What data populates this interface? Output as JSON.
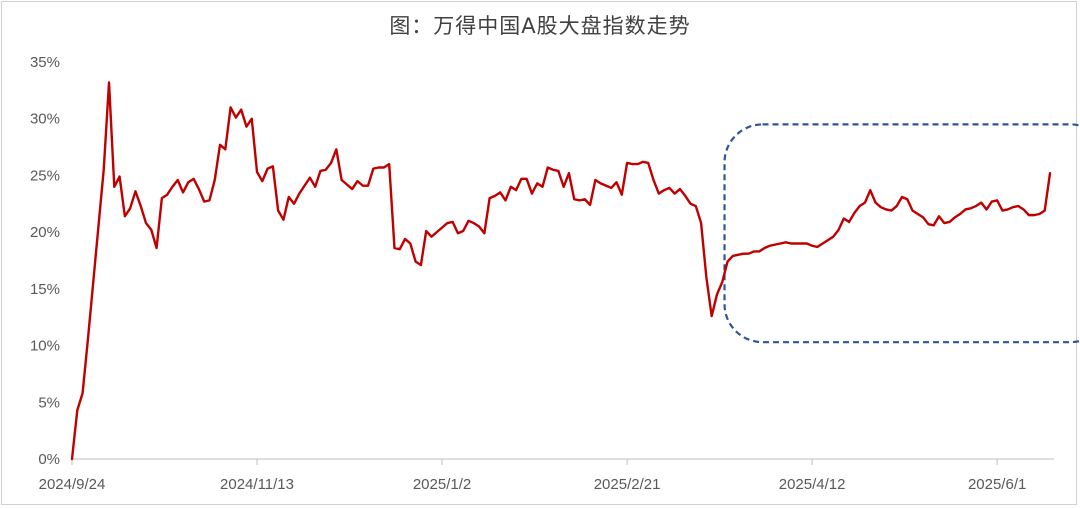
{
  "chart_data": {
    "type": "line",
    "title": "图：万得中国A股大盘指数走势",
    "y_ticks": [
      "0%",
      "5%",
      "10%",
      "15%",
      "20%",
      "25%",
      "30%",
      "35%"
    ],
    "ylim": [
      0,
      35
    ],
    "x_ticks": [
      "2024/9/24",
      "2024/11/13",
      "2025/1/2",
      "2025/2/21",
      "2025/4/12",
      "2025/6/1"
    ],
    "x_tick_index": [
      0,
      35,
      70,
      105,
      140,
      175
    ],
    "grid": false,
    "series": [
      {
        "color": "#c00000",
        "values": [
          0,
          4.3,
          5.8,
          10.5,
          15.5,
          20.5,
          25.5,
          33.2,
          24.0,
          24.9,
          21.4,
          22.1,
          23.6,
          22.3,
          20.8,
          20.2,
          18.6,
          23.0,
          23.3,
          24.0,
          24.6,
          23.5,
          24.4,
          24.7,
          23.8,
          22.7,
          22.8,
          24.6,
          27.7,
          27.3,
          31.0,
          30.1,
          30.8,
          29.3,
          30.0,
          25.3,
          24.5,
          25.6,
          25.8,
          21.9,
          21.1,
          23.1,
          22.5,
          23.4,
          24.1,
          24.8,
          24.0,
          25.4,
          25.5,
          26.1,
          27.3,
          24.6,
          24.2,
          23.8,
          24.5,
          24.1,
          24.1,
          25.6,
          25.7,
          25.7,
          26.0,
          18.6,
          18.5,
          19.4,
          19.0,
          17.4,
          17.1,
          20.1,
          19.6,
          20.0,
          20.4,
          20.8,
          20.9,
          19.9,
          20.1,
          21.0,
          20.8,
          20.5,
          19.9,
          23.0,
          23.2,
          23.5,
          22.8,
          24.0,
          23.7,
          24.7,
          24.7,
          23.4,
          24.3,
          24.0,
          25.7,
          25.5,
          25.4,
          24.0,
          25.2,
          22.9,
          22.8,
          22.9,
          22.4,
          24.6,
          24.3,
          24.1,
          23.9,
          24.4,
          23.3,
          26.1,
          26.0,
          26.0,
          26.2,
          26.1,
          24.6,
          23.4,
          23.7,
          23.9,
          23.4,
          23.8,
          23.2,
          22.5,
          22.3,
          20.8,
          16.0,
          12.6,
          14.5,
          15.6,
          17.4,
          17.9,
          18.0,
          18.1,
          18.1,
          18.3,
          18.3,
          18.6,
          18.8,
          18.9,
          19.0,
          19.1,
          19.0,
          19.0,
          19.0,
          19.0,
          18.8,
          18.7,
          19.0,
          19.3,
          19.6,
          20.2,
          21.2,
          20.9,
          21.7,
          22.3,
          22.6,
          23.7,
          22.6,
          22.2,
          22.0,
          21.9,
          22.3,
          23.1,
          22.9,
          21.9,
          21.6,
          21.3,
          20.7,
          20.6,
          21.4,
          20.8,
          20.9,
          21.3,
          21.6,
          22.0,
          22.1,
          22.3,
          22.6,
          22.0,
          22.7,
          22.8,
          21.9,
          22.0,
          22.2,
          22.3,
          22.0,
          21.5,
          21.5,
          21.6,
          21.9,
          25.2
        ]
      }
    ],
    "annotation": {
      "shape": "dashed-rounded-rectangle",
      "color": "#2f5597",
      "x_from_index": 124,
      "x_to_index": 193,
      "y_from": 10.3,
      "y_to": 29.5
    }
  }
}
